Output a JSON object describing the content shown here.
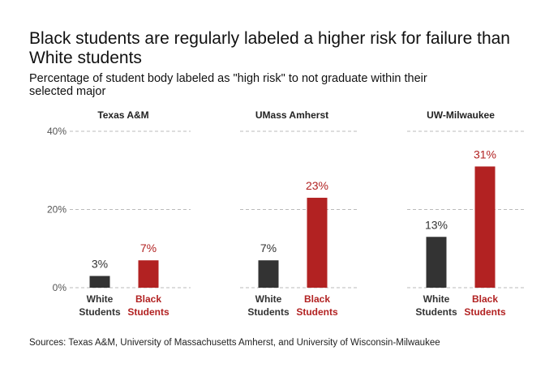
{
  "title": "Black students are regularly labeled a higher risk for failure than White students",
  "subtitle": "Percentage of student body labeled as \"high risk\" to not graduate within their selected major",
  "caption": "Sources: Texas A&M, University of Massachusetts Amherst, and University of Wisconsin-Milwaukee",
  "colors": {
    "white_students": "#333333",
    "black_students": "#b22222",
    "grid": "#bbbbbb"
  },
  "chart_data": {
    "type": "bar",
    "facets": [
      "Texas A&M",
      "UMass Amherst",
      "UW-Milwaukee"
    ],
    "categories": [
      [
        "White",
        "Students"
      ],
      [
        "Black",
        "Students"
      ]
    ],
    "values": [
      [
        3,
        7
      ],
      [
        7,
        23
      ],
      [
        13,
        31
      ]
    ],
    "value_labels": [
      [
        "3%",
        "7%"
      ],
      [
        "7%",
        "23%"
      ],
      [
        "13%",
        "31%"
      ]
    ],
    "yticks": [
      0,
      20,
      40
    ],
    "ytick_labels": [
      "0%",
      "20%",
      "40%"
    ],
    "ylim": [
      0,
      40
    ],
    "grid": "horizontal dashed",
    "legend": "none"
  }
}
